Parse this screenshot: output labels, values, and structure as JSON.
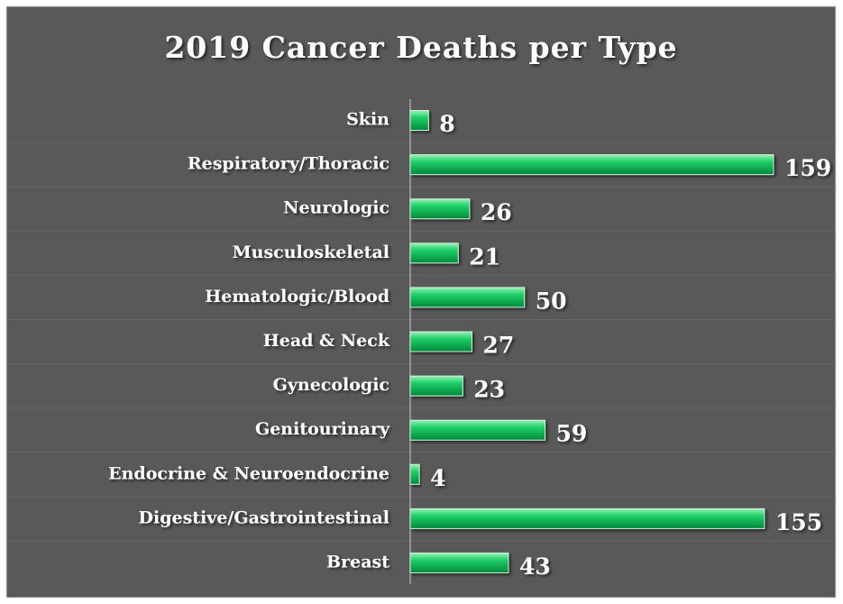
{
  "chart_data": {
    "type": "bar",
    "orientation": "horizontal",
    "title": "2019 Cancer Deaths per Type",
    "categories": [
      "Skin",
      "Respiratory/Thoracic",
      "Neurologic",
      "Musculoskeletal",
      "Hematologic/Blood",
      "Head & Neck",
      "Gynecologic",
      "Genitourinary",
      "Endocrine & Neuroendocrine",
      "Digestive/Gastrointestinal",
      "Breast"
    ],
    "values": [
      8,
      159,
      26,
      21,
      50,
      27,
      23,
      59,
      4,
      155,
      43
    ],
    "color": "#00b050"
  }
}
